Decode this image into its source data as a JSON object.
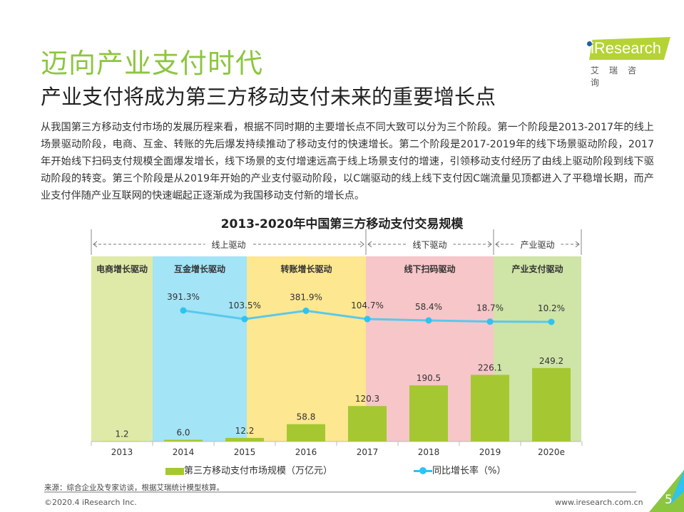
{
  "header": {
    "title": "迈向产业支付时代",
    "subtitle": "产业支付将成为第三方移动支付未来的重要增长点"
  },
  "logo": {
    "text": "iResearch",
    "cn": "艾瑞咨询"
  },
  "body": "从我国第三方移动支付市场的发展历程来看，根据不同时期的主要增长点不同大致可以分为三个阶段。第一个阶段是2013-2017年的线上场景驱动阶段，电商、互金、转账的先后爆发持续推动了移动支付的快速增长。第二个阶段是2017-2019年的线下场景驱动阶段，2017年开始线下扫码支付规模全面爆发增长，线下场景的支付增速远高于线上场景支付的增速，引领移动支付经历了由线上驱动阶段到线下驱动阶段的转变。第三个阶段是从2019年开始的产业支付驱动阶段，以C端驱动的线上线下支付因C端流量见顶都进入了平稳增长期，而产业支付伴随产业互联网的快速崛起正逐渐成为我国移动支付新的增长点。",
  "chart_data": {
    "type": "bar+line",
    "title": "2013-2020年中国第三方移动支付交易规模",
    "categories": [
      "2013",
      "2014",
      "2015",
      "2016",
      "2017",
      "2018",
      "2019",
      "2020e"
    ],
    "series": [
      {
        "name": "第三方移动支付市场规模（万亿元）",
        "type": "bar",
        "color": "#a5c832",
        "values": [
          1.2,
          6.0,
          12.2,
          58.8,
          120.3,
          190.5,
          226.1,
          249.2
        ]
      },
      {
        "name": "同比增长率（%）",
        "type": "line",
        "color": "#2ec3f0",
        "values": [
          null,
          391.3,
          103.5,
          381.9,
          104.7,
          58.4,
          18.7,
          10.2
        ]
      }
    ],
    "phases": [
      {
        "label": "线上驱动",
        "from": "2013",
        "to": "2017"
      },
      {
        "label": "线下驱动",
        "from": "2017",
        "to": "2019"
      },
      {
        "label": "产业驱动",
        "from": "2019",
        "to": "2020e"
      }
    ],
    "bands": [
      {
        "label": "电商增长驱动",
        "color": "#dfeaa8"
      },
      {
        "label": "互金增长驱动",
        "color": "#a3e4f6"
      },
      {
        "label": "转账增长驱动",
        "color": "#fde790"
      },
      {
        "label": "线下扫码驱动",
        "color": "#f6c6c9"
      },
      {
        "label": "产业支付驱动",
        "color": "#cfe4a7"
      }
    ],
    "legend_position": "bottom"
  },
  "footer": {
    "source": "来源：综合企业及专家访谈，根据艾瑞统计模型核算。",
    "copyright": "©2020.4 iResearch Inc.",
    "website": "www.iresearch.com.cn",
    "page": "5"
  }
}
